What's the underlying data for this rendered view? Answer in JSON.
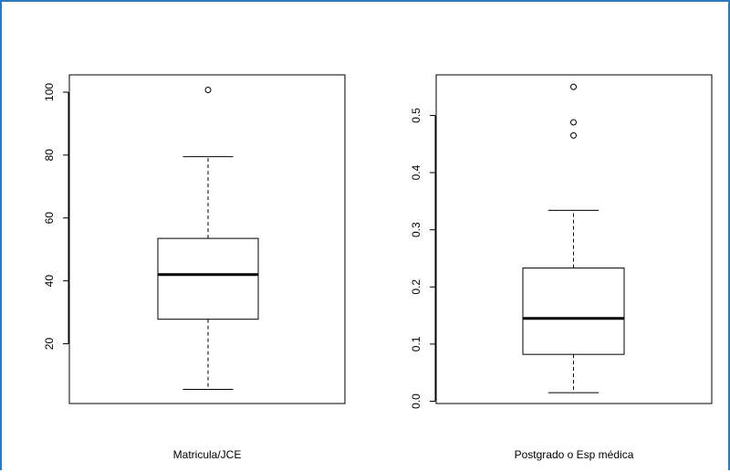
{
  "chart_data": [
    {
      "type": "box",
      "xlabel": "Matricula/JCE",
      "yticks": [
        20,
        40,
        60,
        80,
        100
      ],
      "ylim": [
        1,
        105.5
      ],
      "stats": {
        "whisker_low": 5.5,
        "q1": 27.8,
        "median": 42.0,
        "q3": 53.5,
        "whisker_high": 79.5
      },
      "outliers": [
        100.7
      ]
    },
    {
      "type": "box",
      "xlabel": "Postgrado o Esp médica",
      "yticks": [
        0.0,
        0.1,
        0.2,
        0.3,
        0.4,
        0.5
      ],
      "ytick_labels": [
        "0.0",
        "0.1",
        "0.2",
        "0.3",
        "0.4",
        "0.5"
      ],
      "ylim": [
        -0.004,
        0.571
      ],
      "stats": {
        "whisker_low": 0.015,
        "q1": 0.082,
        "median": 0.145,
        "q3": 0.233,
        "whisker_high": 0.334
      },
      "outliers": [
        0.55,
        0.488,
        0.465
      ]
    }
  ]
}
